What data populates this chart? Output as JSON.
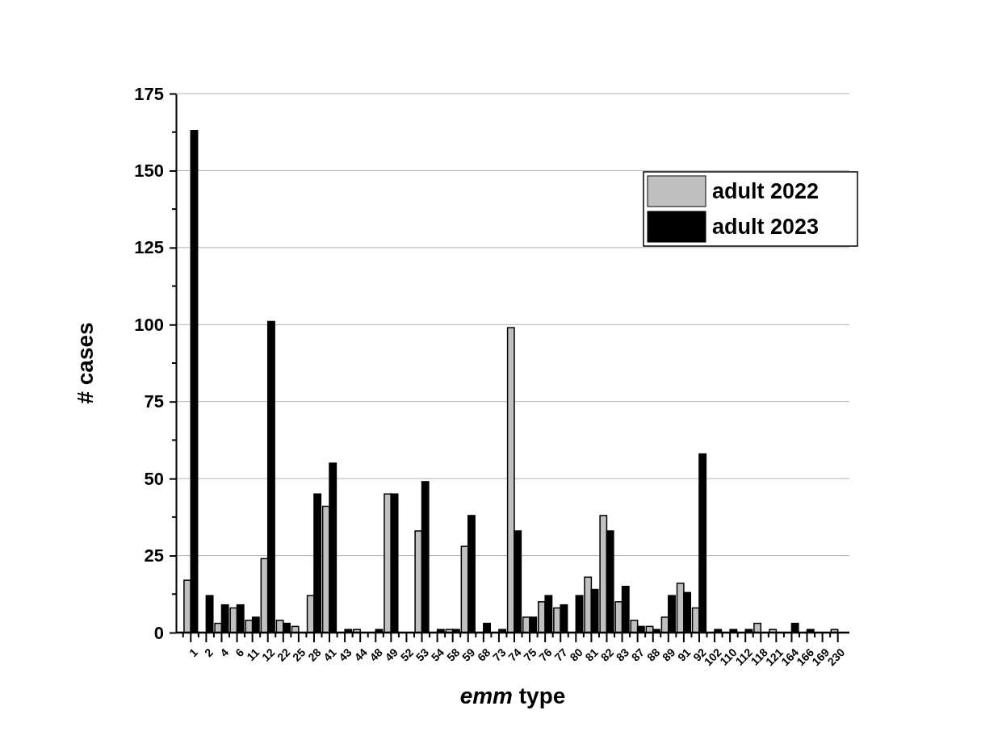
{
  "chart_data": {
    "type": "bar",
    "xlabel": "emm type",
    "ylabel": "# cases",
    "categories": [
      "1",
      "2",
      "4",
      "6",
      "11",
      "12",
      "22",
      "25",
      "28",
      "41",
      "43",
      "44",
      "48",
      "49",
      "52",
      "53",
      "54",
      "58",
      "59",
      "68",
      "73",
      "74",
      "75",
      "76",
      "77",
      "80",
      "81",
      "82",
      "83",
      "87",
      "88",
      "89",
      "91",
      "92",
      "102",
      "110",
      "112",
      "118",
      "121",
      "164",
      "166",
      "169",
      "230"
    ],
    "series": [
      {
        "name": "adult 2022",
        "color": "#c0c0c0",
        "values": [
          17,
          0,
          3,
          8,
          4,
          24,
          4,
          2,
          12,
          41,
          0,
          1,
          0,
          45,
          0,
          33,
          0,
          1,
          28,
          0,
          0,
          99,
          5,
          10,
          8,
          0,
          18,
          38,
          10,
          4,
          2,
          5,
          16,
          8,
          0,
          0,
          0,
          3,
          1,
          0,
          0,
          0,
          1
        ]
      },
      {
        "name": "adult 2023",
        "color": "#000000",
        "values": [
          163,
          12,
          9,
          9,
          5,
          101,
          3,
          0,
          45,
          55,
          1,
          0,
          1,
          45,
          0,
          49,
          1,
          1,
          38,
          3,
          1,
          33,
          5,
          12,
          9,
          12,
          14,
          33,
          15,
          2,
          1,
          12,
          13,
          58,
          1,
          1,
          1,
          0,
          0,
          3,
          1,
          0,
          0
        ]
      }
    ],
    "ylim": [
      0,
      175
    ],
    "yticks": [
      0,
      25,
      50,
      75,
      100,
      125,
      150,
      175
    ],
    "grid": "y",
    "legend": "top right"
  }
}
